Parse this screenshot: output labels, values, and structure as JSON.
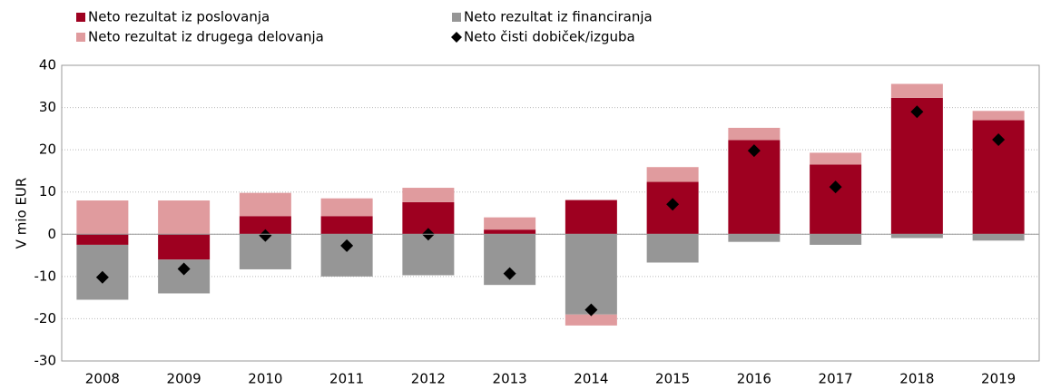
{
  "chart_data": {
    "type": "bar",
    "stacked": true,
    "y_label": "V mio EUR",
    "categories": [
      "2008",
      "2009",
      "2010",
      "2011",
      "2012",
      "2013",
      "2014",
      "2015",
      "2016",
      "2017",
      "2018",
      "2019"
    ],
    "series": [
      {
        "name": "Neto rezultat iz poslovanja",
        "color": "#9e0020",
        "values": [
          -2.5,
          -6,
          4.3,
          4.3,
          7.6,
          1.1,
          8.1,
          12.4,
          22.3,
          16.5,
          32.3,
          27
        ]
      },
      {
        "name": "Neto rezultat iz financiranja",
        "color": "#969696",
        "values": [
          -13,
          -8,
          -8.3,
          -10,
          -9.7,
          -12,
          -19,
          -6.7,
          -1.8,
          -2.5,
          -0.9,
          -1.5
        ]
      },
      {
        "name": "Neto rezultat iz drugega delovanja",
        "color": "#e09b9e",
        "values": [
          8,
          8,
          5.5,
          4.2,
          3.4,
          2.9,
          -2.6,
          3.5,
          2.9,
          2.8,
          3.3,
          2.2
        ]
      },
      {
        "name": "Neto čisti dobiček/izguba",
        "color": "#000000",
        "type": "scatter",
        "marker": "diamond",
        "values": [
          -10.2,
          -8.2,
          -0.3,
          -2.7,
          0,
          -9.3,
          -17.9,
          7.1,
          19.8,
          11.2,
          29,
          22.4
        ]
      }
    ],
    "ylim": [
      -30,
      40
    ],
    "yticks": [
      -30,
      -20,
      -10,
      0,
      10,
      20,
      30,
      40
    ],
    "grid": true,
    "legend": "top"
  }
}
